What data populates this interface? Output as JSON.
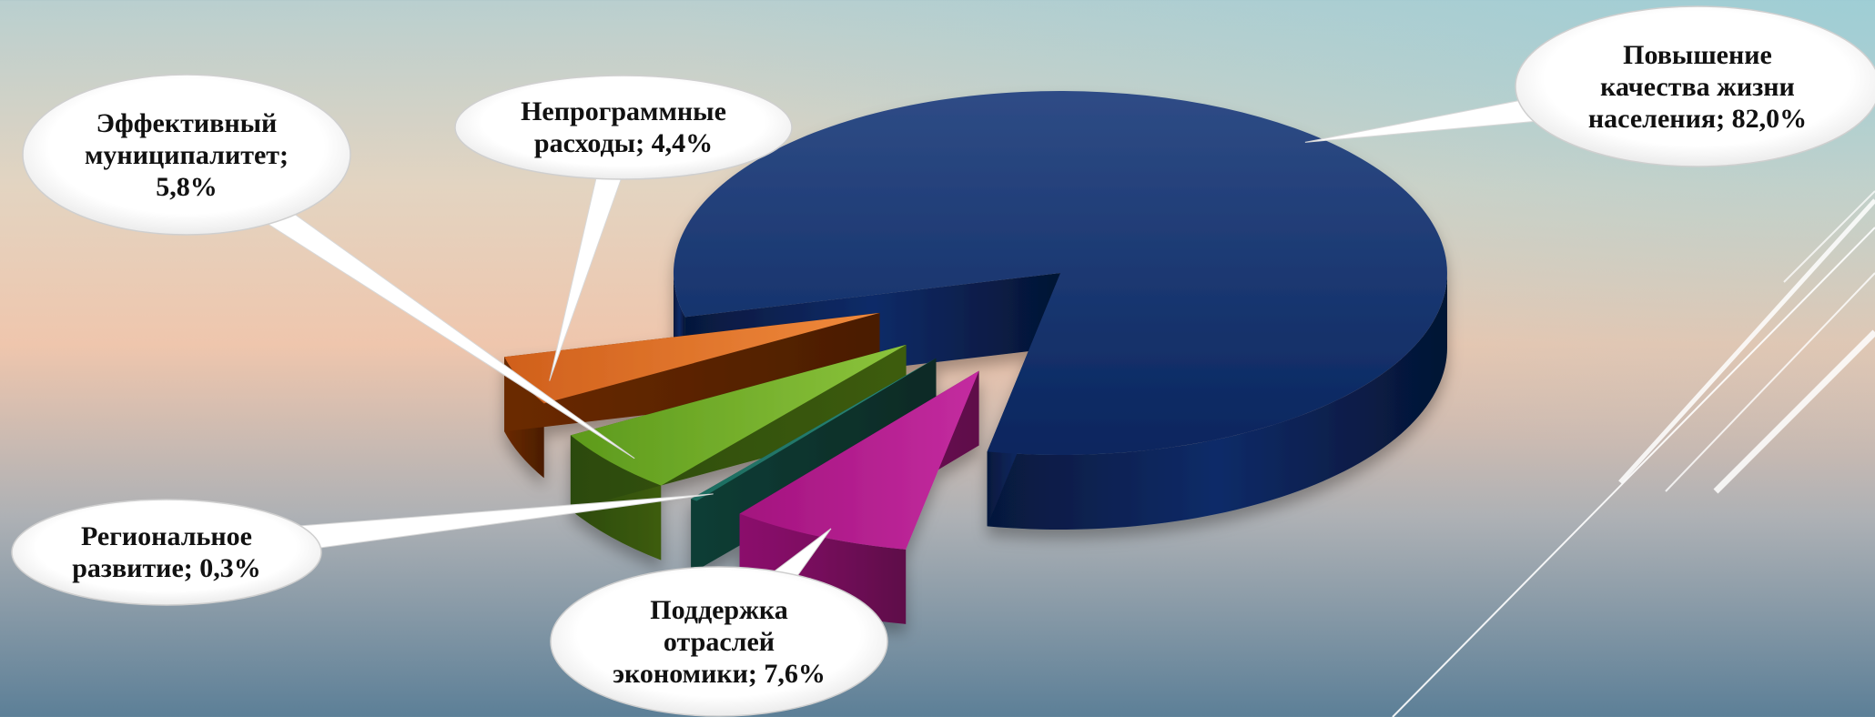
{
  "chart_data": {
    "type": "pie",
    "title": "",
    "style": "3d-exploded",
    "labels_style": "callout-bubbles",
    "slices": [
      {
        "name": "Повышение качества жизни населения",
        "value": 82.0,
        "label": "Повышение\nкачества жизни\nнаселения; 82,0%",
        "color": "#0d2d6b"
      },
      {
        "name": "Поддержка отраслей экономики",
        "value": 7.6,
        "label": "Поддержка\nотраслей\nэкономики; 7,6%",
        "color": "#b0198c"
      },
      {
        "name": "Региональное развитие",
        "value": 0.3,
        "label": "Региональное\nразвитие; 0,3%",
        "color": "#1d6b5f"
      },
      {
        "name": "Эффективный муниципалитет",
        "value": 5.8,
        "label": "Эффективный\nмуниципалитет;\n5,8%",
        "color": "#6fae2a"
      },
      {
        "name": "Непрограммные расходы",
        "value": 4.4,
        "label": "Непрограммные\nрасходы; 4,4%",
        "color": "#e8782c"
      }
    ]
  }
}
